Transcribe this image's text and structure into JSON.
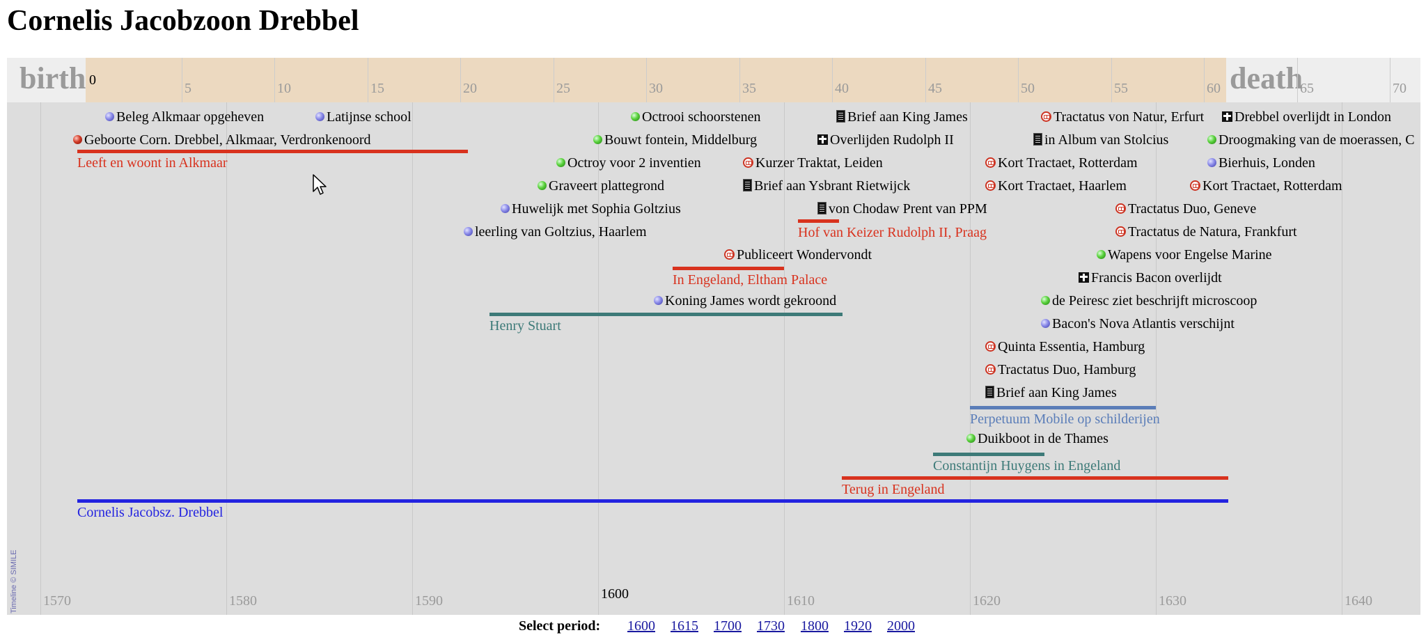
{
  "page": {
    "title": "Cornelis Jacobzoon Drebbel"
  },
  "timeline": {
    "age_band": {
      "birth_label": "birth",
      "death_label": "death",
      "zero_label": "0",
      "ticks": [
        "5",
        "10",
        "15",
        "20",
        "25",
        "30",
        "35",
        "40",
        "45",
        "50",
        "55",
        "60",
        "65",
        "70"
      ]
    },
    "year_labels": [
      "1570",
      "1580",
      "1590",
      "1610",
      "1620",
      "1630",
      "1640"
    ],
    "year_highlight": "1600",
    "credit": "Timeline © SIMILE",
    "events": [
      {
        "id": "beleg",
        "icon": "blue-dot-icon",
        "label": "Beleg Alkmaar opgeheven"
      },
      {
        "id": "latijnse",
        "icon": "blue-dot-icon",
        "label": "Latijnse school"
      },
      {
        "id": "octrooi-schoorsteen",
        "icon": "green-dot-icon",
        "label": "Octrooi schoorstenen"
      },
      {
        "id": "brief-king-1",
        "icon": "document-icon",
        "label": "Brief aan King James"
      },
      {
        "id": "tractatus-erfurt",
        "icon": "book-icon",
        "label": "Tractatus von Natur, Erfurt"
      },
      {
        "id": "overlijdt-london",
        "icon": "cross-icon",
        "label": "Drebbel overlijdt in London"
      },
      {
        "id": "geboorte",
        "icon": "red-dot-icon",
        "label": "Geboorte Corn. Drebbel, Alkmaar, Verdronkenoord"
      },
      {
        "id": "fontein",
        "icon": "green-dot-icon",
        "label": "Bouwt fontein, Middelburg"
      },
      {
        "id": "overlijden-rudolph",
        "icon": "cross-icon",
        "label": "Overlijden Rudolph II"
      },
      {
        "id": "stolcius",
        "icon": "document-icon",
        "label": "in Album van Stolcius"
      },
      {
        "id": "droogmaking",
        "icon": "green-dot-icon",
        "label": "Droogmaking van de moerassen, C"
      },
      {
        "id": "octroy-inventien",
        "icon": "green-dot-icon",
        "label": "Octroy voor 2 inventien"
      },
      {
        "id": "kurzer-traktat",
        "icon": "book-icon",
        "label": "Kurzer Traktat, Leiden"
      },
      {
        "id": "kort-rotterdam-1",
        "icon": "book-icon",
        "label": "Kort Tractaet, Rotterdam"
      },
      {
        "id": "bierhuis",
        "icon": "blue-dot-icon",
        "label": "Bierhuis, Londen"
      },
      {
        "id": "plattegrond",
        "icon": "green-dot-icon",
        "label": "Graveert plattegrond"
      },
      {
        "id": "brief-ysbrant",
        "icon": "document-icon",
        "label": "Brief aan Ysbrant Rietwijck"
      },
      {
        "id": "kort-haarlem",
        "icon": "book-icon",
        "label": "Kort Tractaet, Haarlem"
      },
      {
        "id": "kort-rotterdam-2",
        "icon": "book-icon",
        "label": "Kort Tractaet, Rotterdam"
      },
      {
        "id": "huwelijk",
        "icon": "blue-dot-icon",
        "label": "Huwelijk met Sophia Goltzius"
      },
      {
        "id": "chodaw",
        "icon": "document-icon",
        "label": "von Chodaw Prent van PPM"
      },
      {
        "id": "duo-geneve",
        "icon": "book-icon",
        "label": "Tractatus Duo, Geneve"
      },
      {
        "id": "leerling",
        "icon": "blue-dot-icon",
        "label": "leerling van Goltzius, Haarlem"
      },
      {
        "id": "natura-frankfurt",
        "icon": "book-icon",
        "label": "Tractatus de Natura, Frankfurt"
      },
      {
        "id": "wondervondt",
        "icon": "book-icon",
        "label": "Publiceert Wondervondt"
      },
      {
        "id": "wapens",
        "icon": "green-dot-icon",
        "label": "Wapens voor Engelse Marine"
      },
      {
        "id": "bacon-overlijdt",
        "icon": "cross-icon",
        "label": "Francis Bacon overlijdt"
      },
      {
        "id": "koning-james",
        "icon": "blue-dot-icon",
        "label": "Koning James wordt gekroond"
      },
      {
        "id": "peiresc",
        "icon": "green-dot-icon",
        "label": "de Peiresc ziet beschrijft microscoop"
      },
      {
        "id": "nova-atlantis",
        "icon": "blue-dot-icon",
        "label": "Bacon's Nova Atlantis verschijnt"
      },
      {
        "id": "quinta",
        "icon": "book-icon",
        "label": "Quinta Essentia, Hamburg"
      },
      {
        "id": "duo-hamburg",
        "icon": "book-icon",
        "label": "Tractatus Duo, Hamburg"
      },
      {
        "id": "brief-king-2",
        "icon": "document-icon",
        "label": "Brief aan King James"
      },
      {
        "id": "duikboot",
        "icon": "green-dot-icon",
        "label": "Duikboot in de Thames"
      }
    ],
    "durations": [
      {
        "id": "alkmaar",
        "label": "Leeft en woont in Alkmaar",
        "color": "#d8321e"
      },
      {
        "id": "praag",
        "label": "Hof van Keizer Rudolph II, Praag",
        "color": "#d8321e"
      },
      {
        "id": "eltham",
        "label": "In Engeland, Eltham Palace",
        "color": "#d8321e"
      },
      {
        "id": "henry",
        "label": "Henry Stuart",
        "color": "#3d7a78"
      },
      {
        "id": "perpetuum",
        "label": "Perpetuum Mobile op schilderijen",
        "color": "#5a7db8"
      },
      {
        "id": "huygens",
        "label": "Constantijn Huygens in Engeland",
        "color": "#3d7a78"
      },
      {
        "id": "terug",
        "label": "Terug in Engeland",
        "color": "#d8321e"
      },
      {
        "id": "drebbel-life",
        "label": "Cornelis Jacobsz. Drebbel",
        "color": "#2323e0"
      }
    ]
  },
  "period_selector": {
    "label": "Select period:",
    "links": [
      "1600",
      "1615",
      "1700",
      "1730",
      "1800",
      "1920",
      "2000"
    ]
  }
}
